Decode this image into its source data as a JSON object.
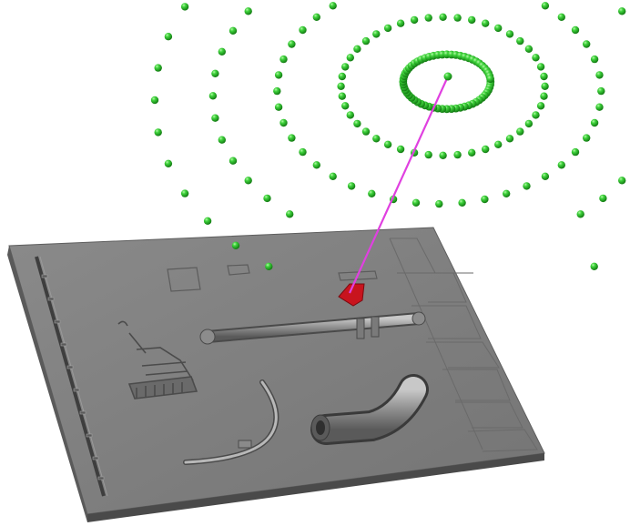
{
  "scene": {
    "background": "#ffffff",
    "plate_color": "#7d7d7d",
    "sphere_color": "#2ec52e",
    "ray_color": "#e040e0",
    "target_color": "#c8141e"
  }
}
